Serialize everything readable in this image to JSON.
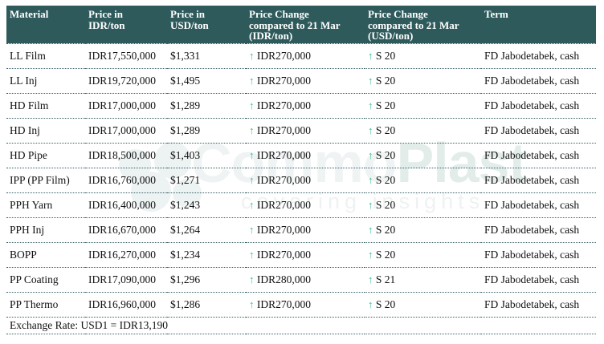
{
  "table": {
    "columns": [
      "Material",
      "Price in\nIDR/ton",
      "Price in\nUSD/ton",
      "Price Change\ncompared to 21 Mar\n(IDR/ton)",
      "Price Change\ncompared to 21 Mar\n(USD/ton)",
      "Term"
    ],
    "rows": [
      {
        "material": "LL Film",
        "price_idr": "IDR17,550,000",
        "price_usd": "$1,331",
        "change_idr": "IDR270,000",
        "change_idr_direction": "up",
        "change_usd": "S 20",
        "change_usd_direction": "up",
        "term": "FD Jabodetabek, cash"
      },
      {
        "material": "LL Inj",
        "price_idr": "IDR19,720,000",
        "price_usd": "$1,495",
        "change_idr": "IDR270,000",
        "change_idr_direction": "up",
        "change_usd": "S 20",
        "change_usd_direction": "up",
        "term": "FD Jabodetabek, cash"
      },
      {
        "material": "HD Film",
        "price_idr": "IDR17,000,000",
        "price_usd": "$1,289",
        "change_idr": "IDR270,000",
        "change_idr_direction": "up",
        "change_usd": "S 20",
        "change_usd_direction": "up",
        "term": "FD Jabodetabek, cash"
      },
      {
        "material": "HD Inj",
        "price_idr": "IDR17,000,000",
        "price_usd": "$1,289",
        "change_idr": "IDR270,000",
        "change_idr_direction": "up",
        "change_usd": "S 20",
        "change_usd_direction": "up",
        "term": "FD Jabodetabek, cash"
      },
      {
        "material": "HD Pipe",
        "price_idr": "IDR18,500,000",
        "price_usd": "$1,403",
        "change_idr": "IDR270,000",
        "change_idr_direction": "up",
        "change_usd": "S 20",
        "change_usd_direction": "up",
        "term": "FD Jabodetabek, cash"
      },
      {
        "material": "IPP (PP Film)",
        "price_idr": "IDR16,760,000",
        "price_usd": "$1,271",
        "change_idr": "IDR270,000",
        "change_idr_direction": "up",
        "change_usd": "S 20",
        "change_usd_direction": "up",
        "term": "FD Jabodetabek, cash"
      },
      {
        "material": "PPH Yarn",
        "price_idr": "IDR16,400,000",
        "price_usd": "$1,243",
        "change_idr": "IDR270,000",
        "change_idr_direction": "up",
        "change_usd": "S 20",
        "change_usd_direction": "up",
        "term": "FD Jabodetabek, cash"
      },
      {
        "material": "PPH Inj",
        "price_idr": "IDR16,670,000",
        "price_usd": "$1,264",
        "change_idr": "IDR270,000",
        "change_idr_direction": "up",
        "change_usd": "S 20",
        "change_usd_direction": "up",
        "term": "FD Jabodetabek, cash"
      },
      {
        "material": "BOPP",
        "price_idr": "IDR16,270,000",
        "price_usd": "$1,234",
        "change_idr": "IDR270,000",
        "change_idr_direction": "up",
        "change_usd": "S 20",
        "change_usd_direction": "up",
        "term": "FD Jabodetabek, cash"
      },
      {
        "material": "PP Coating",
        "price_idr": "IDR17,090,000",
        "price_usd": "$1,296",
        "change_idr": "IDR280,000",
        "change_idr_direction": "up",
        "change_usd": "S 21",
        "change_usd_direction": "up",
        "term": "FD Jabodetabek, cash"
      },
      {
        "material": "PP Thermo",
        "price_idr": "IDR16,960,000",
        "price_usd": "$1,286",
        "change_idr": "IDR270,000",
        "change_idr_direction": "up",
        "change_usd": "S 20",
        "change_usd_direction": "up",
        "term": "FD Jabodetabek, cash"
      }
    ],
    "footer": {
      "exchange_rate": "Exchange Rate: USD1 = IDR13,190"
    }
  },
  "icons": {
    "up_arrow": "↑"
  },
  "watermark": {
    "brand_part1": "Commo",
    "brand_part2": "Plast",
    "tagline": "covering insights"
  },
  "colors": {
    "header_bg": "#2F5A5B",
    "header_text": "#FFFFFF",
    "row_divider": "#356067",
    "up_arrow_green": "#3BBD8E",
    "body_text": "#111111"
  }
}
